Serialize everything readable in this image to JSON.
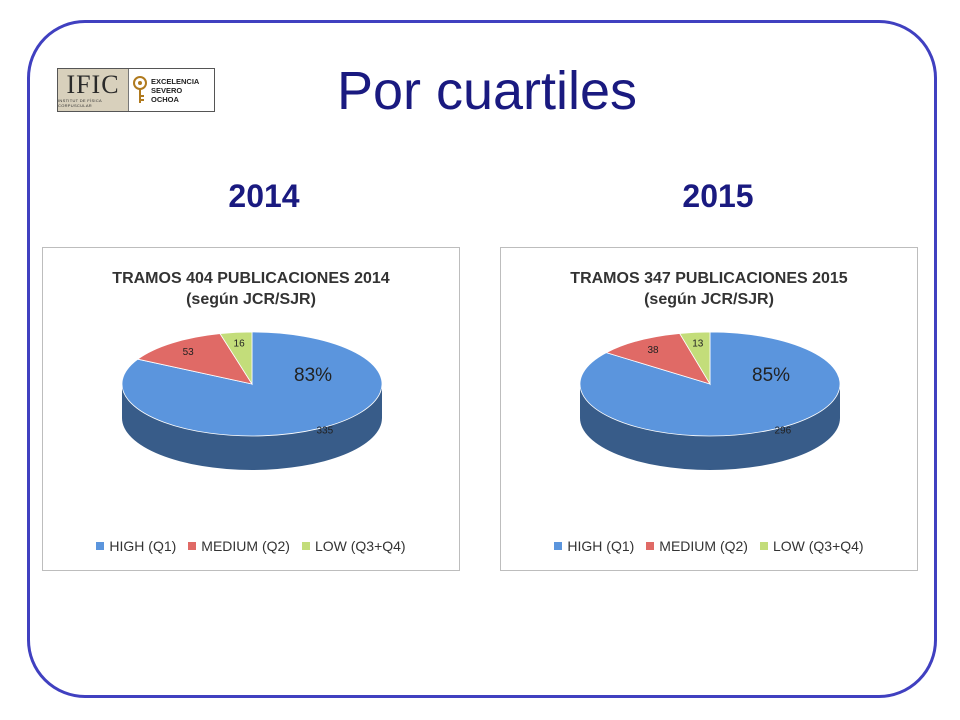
{
  "header": {
    "title": "Por cuartiles",
    "logo": {
      "ific": "IFIC",
      "ific_sub": "INSTITUT DE FÍSICA CORPUSCULAR",
      "lines": [
        "EXCELENCIA",
        "SEVERO",
        "OCHOA"
      ]
    }
  },
  "years": [
    "2014",
    "2015"
  ],
  "colors": {
    "high": "#5b95dd",
    "medium": "#e06a66",
    "low": "#c3dd7a",
    "frame": "#4040c0",
    "heading": "#1a1a80"
  },
  "chart_data": [
    {
      "type": "pie",
      "title_lines": [
        "TRAMOS 404 PUBLICACIONES 2014",
        "(según JCR/SJR)"
      ],
      "categories": [
        "HIGH (Q1)",
        "MEDIUM (Q2)",
        "LOW (Q3+Q4)"
      ],
      "values": [
        335,
        53,
        16
      ],
      "annotation": "83%",
      "legend_position": "bottom"
    },
    {
      "type": "pie",
      "title_lines": [
        "TRAMOS 347 PUBLICACIONES 2015",
        "(según JCR/SJR)"
      ],
      "categories": [
        "HIGH (Q1)",
        "MEDIUM (Q2)",
        "LOW (Q3+Q4)"
      ],
      "values": [
        296,
        38,
        13
      ],
      "annotation": "85%",
      "legend_position": "bottom"
    }
  ]
}
